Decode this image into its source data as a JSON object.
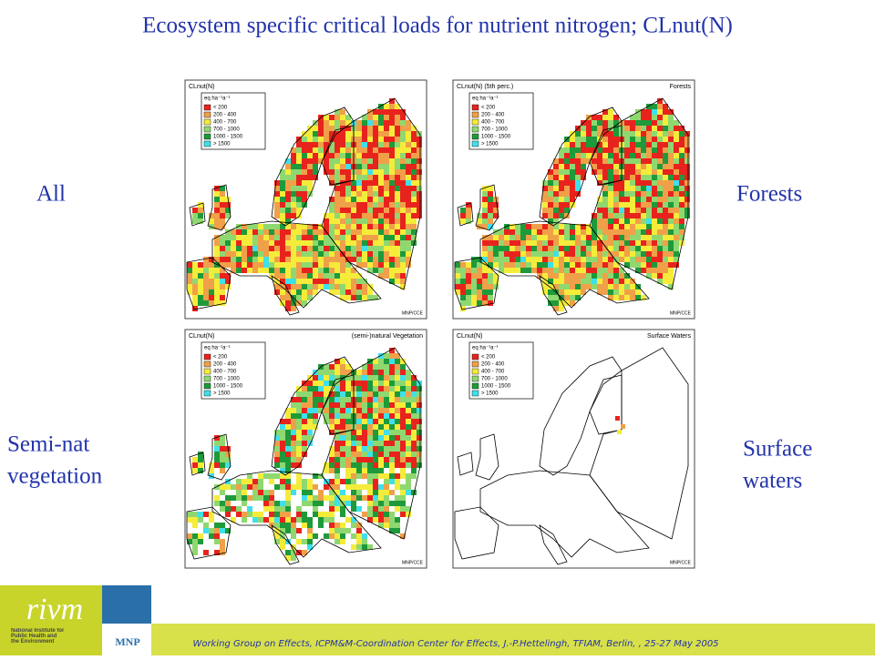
{
  "title": "Ecosystem specific critical loads for nutrient nitrogen; CLnut(N)",
  "legend": {
    "title": "eq ha⁻¹a⁻¹",
    "items": [
      {
        "label": "< 200",
        "color": "#e8231d"
      },
      {
        "label": "200 - 400",
        "color": "#f0a048"
      },
      {
        "label": "400 - 700",
        "color": "#f5ec3a"
      },
      {
        "label": "700 - 1000",
        "color": "#8fd870"
      },
      {
        "label": "1000 - 1500",
        "color": "#1e9a3a"
      },
      {
        "label": "> 1500",
        "color": "#3fe0ea"
      }
    ]
  },
  "panels": [
    {
      "label": [
        "All"
      ],
      "map_title": "CLnut(N)",
      "credit": "MNP/CCE"
    },
    {
      "label": [
        "Forests"
      ],
      "map_title": "CLnut(N) (5th perc.)",
      "map_subtitle": "Forests",
      "credit": "MNP/CCE"
    },
    {
      "label": [
        "Semi-nat",
        "vegetation"
      ],
      "map_title": "CLnut(N)",
      "map_subtitle": "(semi-)natural Vegetation",
      "credit": "MNP/CCE"
    },
    {
      "label": [
        "Surface",
        "waters"
      ],
      "map_title": "CLnut(N)",
      "map_subtitle": "Surface Waters",
      "credit": "MNP/CCE"
    }
  ],
  "footer": "Working Group on Effects, ICPM&M-Coordination Center for Effects, J.-P.Hettelingh, TFIAM, Berlin, , 25-27 May 2005",
  "logo": {
    "name": "rivm",
    "subtitle": "National Institute for Public Health and the Environment",
    "partner": "MNP"
  }
}
